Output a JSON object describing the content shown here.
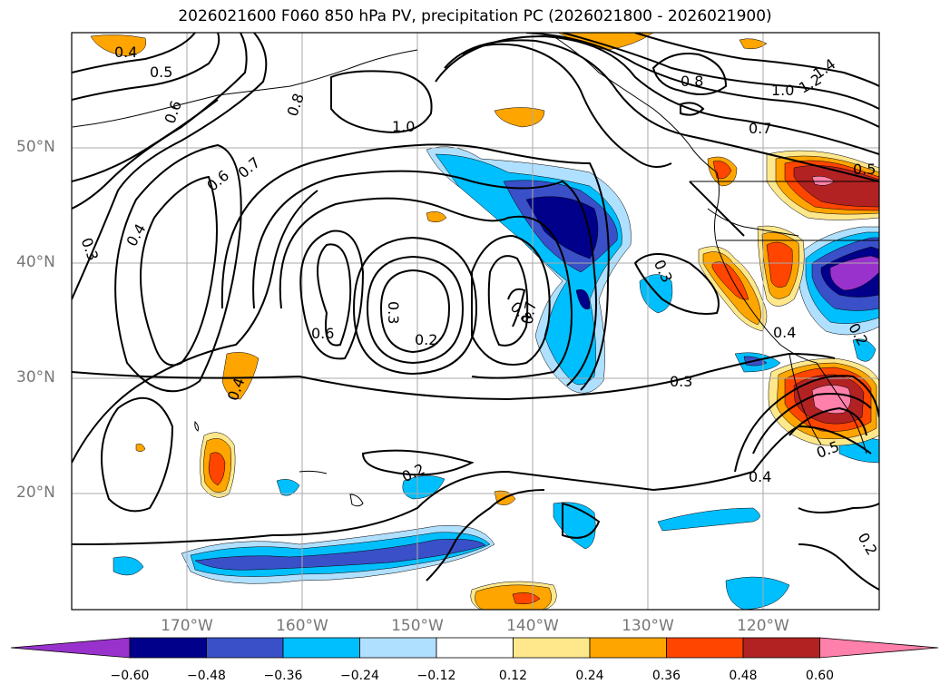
{
  "title": "2026021600 F060 850 hPa PV, precipitation PC (2026021800 - 2026021900)",
  "lat_labels": [
    "50°N",
    "40°N",
    "30°N",
    "20°N"
  ],
  "lon_labels": [
    "170°W",
    "160°W",
    "150°W",
    "140°W",
    "130°W",
    "120°W"
  ],
  "colorbar": {
    "ticks": [
      "−0.60",
      "−0.48",
      "−0.36",
      "−0.24",
      "−0.12",
      "0.12",
      "0.24",
      "0.36",
      "0.48",
      "0.60"
    ],
    "colors": [
      "#9932cc",
      "#00008b",
      "#3a50c8",
      "#00bfff",
      "#b0e0ff",
      "#ffffff",
      "#ffe88c",
      "#ffa500",
      "#ff4500",
      "#b22222",
      "#ff80aa"
    ]
  },
  "contour_labels": [
    "0.4",
    "0.5",
    "0.6",
    "0.8",
    "1.0",
    "0.6",
    "0.7",
    "0.4",
    "0.3",
    "0.6",
    "0.3",
    "0.2",
    "0.8",
    "0.7",
    "0.4",
    "0.2",
    "0.3",
    "0.3",
    "0.4",
    "0.5",
    "0.8",
    "1.0",
    "1.2",
    "1.4",
    "0.7",
    "0.5",
    "0.4",
    "0.2",
    "0.2"
  ]
}
